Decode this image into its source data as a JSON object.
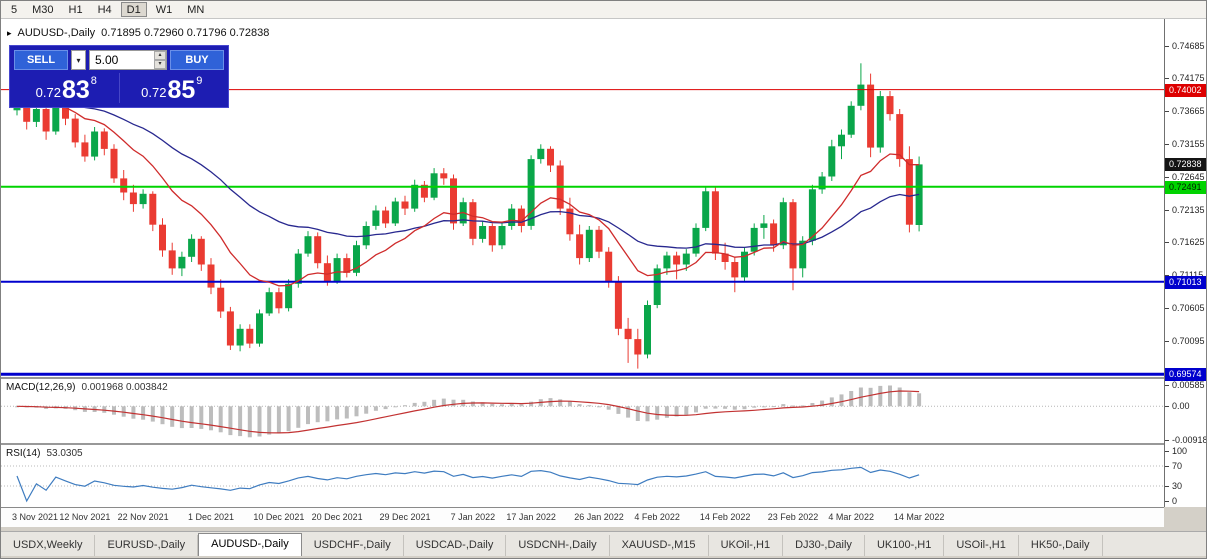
{
  "toolbar": {
    "timeframes": [
      "5",
      "M30",
      "H1",
      "H4",
      "D1",
      "W1",
      "MN"
    ],
    "active": "D1"
  },
  "chart": {
    "symbol_title": "AUDUSD-,Daily",
    "ohlc_text": "0.71895 0.72960 0.71796 0.72838",
    "range": {
      "top": 0.751,
      "bottom": 0.6953
    },
    "colors": {
      "up": "#0aa64a",
      "down": "#ea3b32",
      "ma_fast": "#cf2b2b",
      "ma_slow": "#28288f",
      "hline_red": "#dd0000",
      "hline_green": "#00d300",
      "hline_blue": "#0000cd",
      "macd_hist": "#bdbdbd",
      "macd_signal": "#c23232",
      "rsi_line": "#3e7cc0",
      "badge_black": "#141414"
    },
    "hlines": [
      {
        "price": 0.74002,
        "color": "#dd0000",
        "width": 1
      },
      {
        "price": 0.72491,
        "color": "#00d300",
        "width": 2
      },
      {
        "price": 0.71013,
        "color": "#0000cd",
        "width": 2
      },
      {
        "price": 0.69574,
        "color": "#0000cd",
        "width": 3
      }
    ],
    "price_axis": {
      "ticks": [
        "0.74685",
        "0.74175",
        "0.73665",
        "0.73155",
        "0.72645",
        "0.72135",
        "0.71625",
        "0.71115",
        "0.70605",
        "0.70095",
        "0.69585"
      ],
      "badges": [
        {
          "value": "0.74002",
          "color": "#dd0000",
          "text": "#ffffff"
        },
        {
          "value": "0.72838",
          "color": "#141414",
          "text": "#ffffff"
        },
        {
          "value": "0.72491",
          "color": "#00d300",
          "text": "#002200"
        },
        {
          "value": "0.71013",
          "color": "#0000cd",
          "text": "#ffffff"
        },
        {
          "value": "0.69574",
          "color": "#0000cd",
          "text": "#ffffff"
        }
      ]
    }
  },
  "trade_panel": {
    "sell_label": "SELL",
    "buy_label": "BUY",
    "volume": "5.00",
    "sell_price_prefix": "0.72",
    "sell_price_big": "83",
    "sell_price_sup": "8",
    "buy_price_prefix": "0.72",
    "buy_price_big": "85",
    "buy_price_sup": "9"
  },
  "chart_data": {
    "type": "candlestick",
    "symbol": "AUDUSD-",
    "timeframe": "Daily",
    "ohlc_current": {
      "open": 0.71895,
      "high": 0.7296,
      "low": 0.71796,
      "close": 0.72838
    },
    "candles": [
      [
        0.7368,
        0.7393,
        0.736,
        0.7388
      ],
      [
        0.7388,
        0.7395,
        0.7338,
        0.735
      ],
      [
        0.735,
        0.7378,
        0.7342,
        0.737
      ],
      [
        0.737,
        0.7375,
        0.7322,
        0.7335
      ],
      [
        0.7335,
        0.739,
        0.733,
        0.7382
      ],
      [
        0.7382,
        0.7388,
        0.7345,
        0.7355
      ],
      [
        0.7355,
        0.7362,
        0.731,
        0.7318
      ],
      [
        0.7318,
        0.733,
        0.7288,
        0.7296
      ],
      [
        0.7296,
        0.7342,
        0.729,
        0.7335
      ],
      [
        0.7335,
        0.734,
        0.7298,
        0.7308
      ],
      [
        0.7308,
        0.7315,
        0.7255,
        0.7262
      ],
      [
        0.7262,
        0.7275,
        0.7228,
        0.724
      ],
      [
        0.724,
        0.7252,
        0.721,
        0.7222
      ],
      [
        0.7222,
        0.7245,
        0.7215,
        0.7238
      ],
      [
        0.7238,
        0.7242,
        0.718,
        0.719
      ],
      [
        0.719,
        0.72,
        0.714,
        0.715
      ],
      [
        0.715,
        0.7162,
        0.7112,
        0.7122
      ],
      [
        0.7122,
        0.7148,
        0.711,
        0.714
      ],
      [
        0.714,
        0.7175,
        0.7132,
        0.7168
      ],
      [
        0.7168,
        0.7172,
        0.7118,
        0.7128
      ],
      [
        0.7128,
        0.7138,
        0.7082,
        0.7092
      ],
      [
        0.7092,
        0.7105,
        0.7045,
        0.7055
      ],
      [
        0.7055,
        0.7062,
        0.6995,
        0.7002
      ],
      [
        0.7002,
        0.7035,
        0.6993,
        0.7028
      ],
      [
        0.7028,
        0.7035,
        0.6998,
        0.7005
      ],
      [
        0.7005,
        0.7058,
        0.7,
        0.7052
      ],
      [
        0.7052,
        0.7092,
        0.7048,
        0.7085
      ],
      [
        0.7085,
        0.7092,
        0.7052,
        0.706
      ],
      [
        0.706,
        0.7105,
        0.7055,
        0.7098
      ],
      [
        0.7098,
        0.7152,
        0.7092,
        0.7145
      ],
      [
        0.7145,
        0.718,
        0.714,
        0.7172
      ],
      [
        0.7172,
        0.7178,
        0.7122,
        0.713
      ],
      [
        0.713,
        0.7142,
        0.7095,
        0.7102
      ],
      [
        0.7102,
        0.7145,
        0.7098,
        0.7138
      ],
      [
        0.7138,
        0.7145,
        0.7108,
        0.7115
      ],
      [
        0.7115,
        0.7165,
        0.711,
        0.7158
      ],
      [
        0.7158,
        0.7195,
        0.7152,
        0.7188
      ],
      [
        0.7188,
        0.722,
        0.7182,
        0.7212
      ],
      [
        0.7212,
        0.7218,
        0.7185,
        0.7192
      ],
      [
        0.7192,
        0.7232,
        0.7188,
        0.7226
      ],
      [
        0.7226,
        0.7235,
        0.7205,
        0.7215
      ],
      [
        0.7215,
        0.726,
        0.721,
        0.7252
      ],
      [
        0.7252,
        0.7258,
        0.7225,
        0.7232
      ],
      [
        0.7232,
        0.7278,
        0.7228,
        0.727
      ],
      [
        0.727,
        0.7278,
        0.7252,
        0.7262
      ],
      [
        0.7262,
        0.7268,
        0.7182,
        0.7192
      ],
      [
        0.7192,
        0.7232,
        0.7188,
        0.7225
      ],
      [
        0.7225,
        0.723,
        0.7158,
        0.7168
      ],
      [
        0.7168,
        0.7195,
        0.7162,
        0.7188
      ],
      [
        0.7188,
        0.7192,
        0.7148,
        0.7158
      ],
      [
        0.7158,
        0.7195,
        0.7152,
        0.7188
      ],
      [
        0.7188,
        0.7222,
        0.7182,
        0.7215
      ],
      [
        0.7215,
        0.722,
        0.7178,
        0.7188
      ],
      [
        0.7188,
        0.7298,
        0.7182,
        0.7292
      ],
      [
        0.7292,
        0.7315,
        0.7285,
        0.7308
      ],
      [
        0.7308,
        0.7312,
        0.7272,
        0.7282
      ],
      [
        0.7282,
        0.729,
        0.7205,
        0.7215
      ],
      [
        0.7215,
        0.7232,
        0.7165,
        0.7175
      ],
      [
        0.7175,
        0.719,
        0.7128,
        0.7138
      ],
      [
        0.7138,
        0.7188,
        0.7132,
        0.7182
      ],
      [
        0.7182,
        0.7188,
        0.7138,
        0.7148
      ],
      [
        0.7148,
        0.7155,
        0.7092,
        0.7102
      ],
      [
        0.7102,
        0.711,
        0.7018,
        0.7028
      ],
      [
        0.7028,
        0.7045,
        0.6975,
        0.7012
      ],
      [
        0.7012,
        0.7028,
        0.6966,
        0.6988
      ],
      [
        0.6988,
        0.7072,
        0.6982,
        0.7065
      ],
      [
        0.7065,
        0.7128,
        0.706,
        0.7122
      ],
      [
        0.7122,
        0.7148,
        0.7112,
        0.7142
      ],
      [
        0.7142,
        0.7148,
        0.7105,
        0.7128
      ],
      [
        0.7128,
        0.7152,
        0.7118,
        0.7145
      ],
      [
        0.7145,
        0.7192,
        0.714,
        0.7185
      ],
      [
        0.7185,
        0.725,
        0.718,
        0.7242
      ],
      [
        0.7242,
        0.7248,
        0.7135,
        0.7145
      ],
      [
        0.7145,
        0.7162,
        0.712,
        0.7132
      ],
      [
        0.7132,
        0.714,
        0.7085,
        0.7108
      ],
      [
        0.7108,
        0.7155,
        0.7102,
        0.7148
      ],
      [
        0.7148,
        0.7192,
        0.7142,
        0.7185
      ],
      [
        0.7185,
        0.7205,
        0.7168,
        0.7192
      ],
      [
        0.7192,
        0.7198,
        0.7148,
        0.7158
      ],
      [
        0.7158,
        0.7232,
        0.7152,
        0.7225
      ],
      [
        0.7225,
        0.723,
        0.7088,
        0.7122
      ],
      [
        0.7122,
        0.7172,
        0.7108,
        0.7165
      ],
      [
        0.7165,
        0.7252,
        0.7158,
        0.7245
      ],
      [
        0.7245,
        0.7272,
        0.7238,
        0.7265
      ],
      [
        0.7265,
        0.7322,
        0.7258,
        0.7312
      ],
      [
        0.7312,
        0.7338,
        0.7292,
        0.733
      ],
      [
        0.733,
        0.7382,
        0.7325,
        0.7375
      ],
      [
        0.7375,
        0.7441,
        0.7368,
        0.7408
      ],
      [
        0.7408,
        0.7425,
        0.7295,
        0.731
      ],
      [
        0.731,
        0.7398,
        0.7302,
        0.739
      ],
      [
        0.739,
        0.7398,
        0.7352,
        0.7362
      ],
      [
        0.7362,
        0.737,
        0.728,
        0.7292
      ],
      [
        0.7292,
        0.7312,
        0.7178,
        0.719
      ],
      [
        0.71895,
        0.7296,
        0.71796,
        0.72838
      ]
    ],
    "date_labels": [
      "3 Nov 2021",
      "12 Nov 2021",
      "22 Nov 2021",
      "1 Dec 2021",
      "10 Dec 2021",
      "20 Dec 2021",
      "29 Dec 2021",
      "7 Jan 2022",
      "17 Jan 2022",
      "26 Jan 2022",
      "4 Feb 2022",
      "14 Feb 2022",
      "23 Feb 2022",
      "4 Mar 2022",
      "14 Mar 2022"
    ],
    "indicators": {
      "ma_fast": {
        "type": "EMA",
        "period": 13
      },
      "ma_slow": {
        "type": "EMA",
        "period": 34
      },
      "macd": {
        "label": "MACD(12,26,9)",
        "values": "0.001968 0.003842",
        "scale_labels": [
          "0.00585",
          "0.00",
          "-0.00918"
        ],
        "scale_values": [
          0.00585,
          0,
          -0.00918
        ]
      },
      "rsi": {
        "label": "RSI(14)",
        "value": "53.0305",
        "levels": [
          70,
          30
        ],
        "scale_labels": [
          "100",
          "70",
          "30",
          "0"
        ],
        "scale_values": [
          100,
          70,
          30,
          0
        ]
      }
    }
  },
  "tabs": {
    "items": [
      "USDX,Weekly",
      "EURUSD-,Daily",
      "AUDUSD-,Daily",
      "USDCHF-,Daily",
      "USDCAD-,Daily",
      "USDCNH-,Daily",
      "XAUUSD-,M15",
      "UKOil-,H1",
      "DJ30-,Daily",
      "UK100-,H1",
      "USOil-,H1",
      "HK50-,Daily"
    ],
    "active_index": 2
  }
}
